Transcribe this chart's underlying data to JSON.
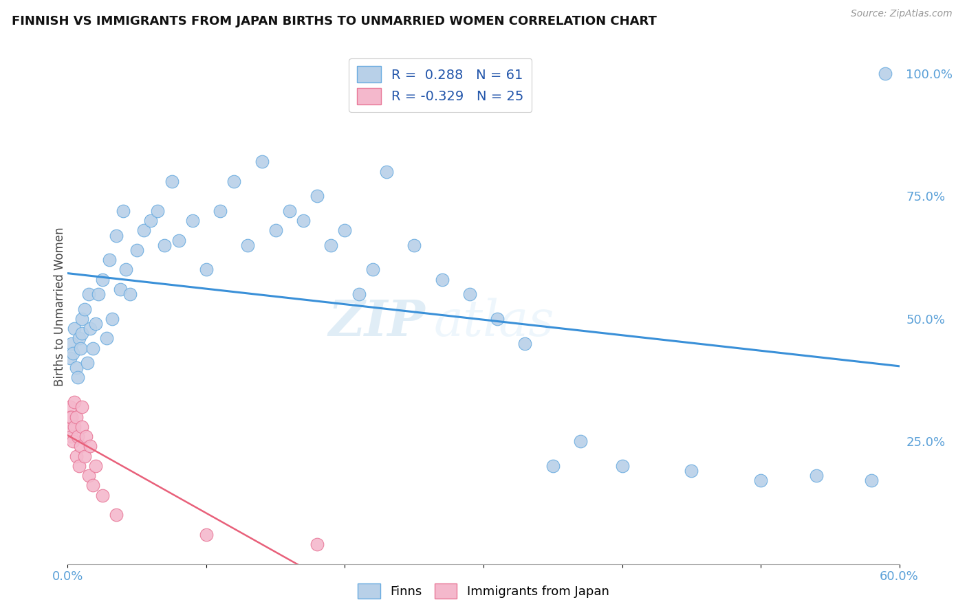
{
  "title": "FINNISH VS IMMIGRANTS FROM JAPAN BIRTHS TO UNMARRIED WOMEN CORRELATION CHART",
  "source": "Source: ZipAtlas.com",
  "ylabel": "Births to Unmarried Women",
  "xlim": [
    0.0,
    0.6
  ],
  "ylim": [
    0.0,
    1.05
  ],
  "yticks_right": [
    0.25,
    0.5,
    0.75,
    1.0
  ],
  "ytick_right_labels": [
    "25.0%",
    "50.0%",
    "75.0%",
    "100.0%"
  ],
  "r_finns": 0.288,
  "n_finns": 61,
  "r_japan": -0.329,
  "n_japan": 25,
  "legend_label_finns": "Finns",
  "legend_label_japan": "Immigrants from Japan",
  "blue_color": "#b8d0e8",
  "pink_color": "#f4b8cc",
  "blue_edge_color": "#6aace0",
  "pink_edge_color": "#e87898",
  "blue_line_color": "#3a90d8",
  "pink_line_color": "#e8607a",
  "watermark_zip": "ZIP",
  "watermark_atlas": "atlas",
  "background_color": "#ffffff",
  "grid_color": "#d0d8e0",
  "finns_x": [
    0.002,
    0.003,
    0.004,
    0.005,
    0.006,
    0.007,
    0.008,
    0.009,
    0.01,
    0.01,
    0.012,
    0.014,
    0.015,
    0.016,
    0.018,
    0.02,
    0.022,
    0.025,
    0.028,
    0.03,
    0.032,
    0.035,
    0.038,
    0.04,
    0.042,
    0.045,
    0.05,
    0.055,
    0.06,
    0.065,
    0.07,
    0.075,
    0.08,
    0.09,
    0.1,
    0.11,
    0.12,
    0.13,
    0.14,
    0.15,
    0.16,
    0.17,
    0.18,
    0.19,
    0.2,
    0.21,
    0.22,
    0.23,
    0.25,
    0.27,
    0.29,
    0.31,
    0.33,
    0.35,
    0.37,
    0.4,
    0.45,
    0.5,
    0.54,
    0.58,
    0.59
  ],
  "finns_y": [
    0.42,
    0.45,
    0.43,
    0.48,
    0.4,
    0.38,
    0.46,
    0.44,
    0.5,
    0.47,
    0.52,
    0.41,
    0.55,
    0.48,
    0.44,
    0.49,
    0.55,
    0.58,
    0.46,
    0.62,
    0.5,
    0.67,
    0.56,
    0.72,
    0.6,
    0.55,
    0.64,
    0.68,
    0.7,
    0.72,
    0.65,
    0.78,
    0.66,
    0.7,
    0.6,
    0.72,
    0.78,
    0.65,
    0.82,
    0.68,
    0.72,
    0.7,
    0.75,
    0.65,
    0.68,
    0.55,
    0.6,
    0.8,
    0.65,
    0.58,
    0.55,
    0.5,
    0.45,
    0.2,
    0.25,
    0.2,
    0.19,
    0.17,
    0.18,
    0.17,
    1.0
  ],
  "japan_x": [
    0.001,
    0.002,
    0.002,
    0.003,
    0.003,
    0.004,
    0.005,
    0.005,
    0.006,
    0.006,
    0.007,
    0.008,
    0.009,
    0.01,
    0.01,
    0.012,
    0.013,
    0.015,
    0.016,
    0.018,
    0.02,
    0.025,
    0.035,
    0.1,
    0.18
  ],
  "japan_y": [
    0.28,
    0.32,
    0.3,
    0.26,
    0.3,
    0.25,
    0.33,
    0.28,
    0.22,
    0.3,
    0.26,
    0.2,
    0.24,
    0.32,
    0.28,
    0.22,
    0.26,
    0.18,
    0.24,
    0.16,
    0.2,
    0.14,
    0.1,
    0.06,
    0.04
  ]
}
